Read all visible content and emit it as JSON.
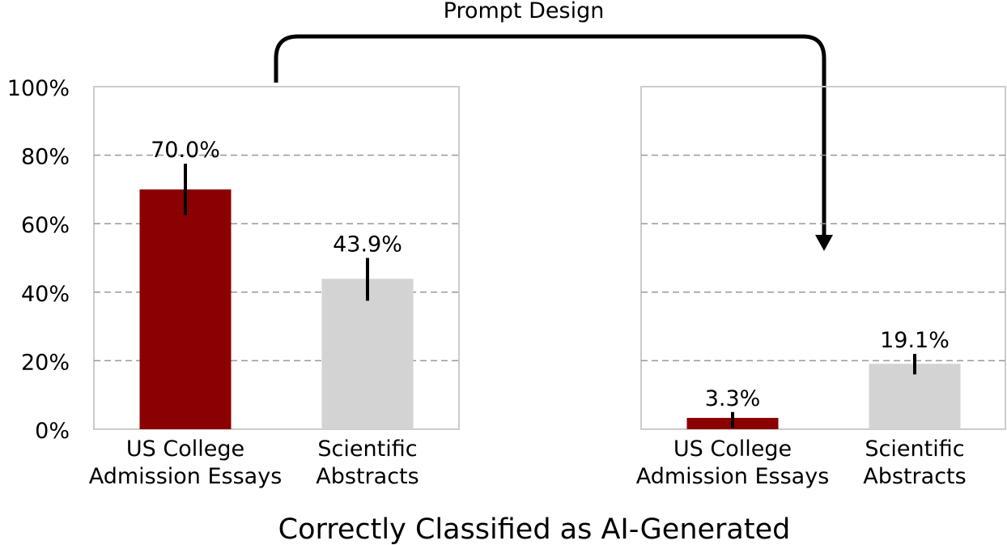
{
  "chart_data": [
    {
      "type": "bar",
      "categories": [
        "US College\nAdmission Essays",
        "Scientific\nAbstracts"
      ],
      "values": [
        70.0,
        43.9
      ],
      "value_labels": [
        "70.0%",
        "43.9%"
      ],
      "error_bars": [
        [
          62.5,
          77.5
        ],
        [
          37.5,
          50.0
        ]
      ],
      "colors": [
        "#8b0000",
        "#d3d3d3"
      ],
      "ylim": [
        0,
        100
      ],
      "yticks": [
        "0%",
        "20%",
        "40%",
        "60%",
        "80%",
        "100%"
      ],
      "grid": true
    },
    {
      "type": "bar",
      "categories": [
        "US College\nAdmission Essays",
        "Scientific\nAbstracts"
      ],
      "values": [
        3.3,
        19.1
      ],
      "value_labels": [
        "3.3%",
        "19.1%"
      ],
      "error_bars": [
        [
          0.5,
          5.0
        ],
        [
          16.0,
          22.0
        ]
      ],
      "colors": [
        "#8b0000",
        "#d3d3d3"
      ],
      "ylim": [
        0,
        100
      ],
      "grid": true
    }
  ],
  "annotation": "Prompt Design",
  "xlabel": "Correctly Classified as AI-Generated"
}
